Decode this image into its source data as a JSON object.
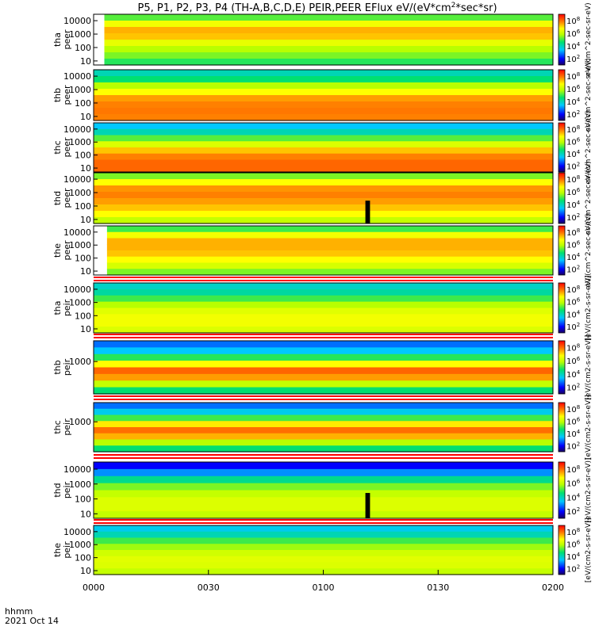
{
  "chart_data": {
    "type": "heatmap",
    "title": {
      "main": "P5, P1, P2, P3, P4 (TH-A,B,C,D,E) PEIR,PEER EFlux eV/(eV*cm",
      "sup": "2",
      "rest": "*sec*sr)"
    },
    "x_axis": {
      "ticks": [
        "0000",
        "0030",
        "0100",
        "0130",
        "0200"
      ],
      "label_line1": "hhmm",
      "label_line2": "2021 Oct 14",
      "range_minutes": [
        0,
        120
      ]
    },
    "colorbar": {
      "colormap": "rainbow",
      "scale": "log",
      "tick_exponents_electron": [
        2,
        4,
        6,
        8
      ],
      "tick_exponents_ion": [
        2,
        4,
        6,
        8
      ],
      "label_electron": "eV/(cm^2-sec-sr-eV)",
      "label_ion": "[eV/(cm2-s-sr-eV)]"
    },
    "panels": [
      {
        "probe": "tha",
        "species": "peer",
        "ylabels": [
          "10000",
          "1000",
          "100",
          "10"
        ],
        "scale": "log",
        "yrange": [
          5,
          30000
        ],
        "data_start_min": 2.8,
        "spectrum": [
          0.52,
          0.7,
          0.8,
          0.78,
          0.68,
          0.6,
          0.55,
          0.48
        ]
      },
      {
        "probe": "thb",
        "species": "peer",
        "ylabels": [
          "10000",
          "1000",
          "100",
          "10"
        ],
        "scale": "log",
        "yrange": [
          5,
          30000
        ],
        "data_start_min": 0,
        "spectrum": [
          0.38,
          0.45,
          0.6,
          0.72,
          0.82,
          0.85,
          0.86,
          0.85
        ]
      },
      {
        "probe": "thc",
        "species": "peer",
        "ylabels": [
          "10000",
          "1000",
          "100",
          "10"
        ],
        "scale": "log",
        "yrange": [
          5,
          30000
        ],
        "data_start_min": 0,
        "spectrum": [
          0.3,
          0.38,
          0.52,
          0.66,
          0.78,
          0.85,
          0.88,
          0.88
        ]
      },
      {
        "probe": "thd",
        "species": "peer",
        "ylabels": [
          "10000",
          "1000",
          "100",
          "10"
        ],
        "scale": "log",
        "yrange": [
          5,
          30000
        ],
        "data_start_min": 0,
        "spectrum": [
          0.55,
          0.72,
          0.83,
          0.85,
          0.82,
          0.78,
          0.72,
          0.62
        ]
      },
      {
        "probe": "the",
        "species": "peer",
        "ylabels": [
          "10000",
          "1000",
          "100",
          "10"
        ],
        "scale": "log",
        "yrange": [
          5,
          30000
        ],
        "data_start_min": 3.5,
        "spectrum": [
          0.5,
          0.7,
          0.8,
          0.8,
          0.78,
          0.72,
          0.65,
          0.55
        ]
      },
      {
        "probe": "tha",
        "species": "peir",
        "ylabels": [
          "10000",
          "1000",
          "100",
          "10"
        ],
        "scale": "log",
        "yrange": [
          5,
          30000
        ],
        "data_start_min": 0,
        "spectrum": [
          0.36,
          0.4,
          0.5,
          0.6,
          0.67,
          0.7,
          0.7,
          0.66
        ]
      },
      {
        "probe": "thb",
        "species": "peir",
        "ylabels": [
          "1000"
        ],
        "scale": "log",
        "yrange": [
          5,
          30000
        ],
        "data_start_min": 0,
        "spectrum": [
          0.22,
          0.3,
          0.48,
          0.72,
          0.88,
          0.82,
          0.62,
          0.45
        ]
      },
      {
        "probe": "thc",
        "species": "peir",
        "ylabels": [
          "1000"
        ],
        "scale": "log",
        "yrange": [
          5,
          30000
        ],
        "data_start_min": 0,
        "spectrum": [
          0.22,
          0.32,
          0.5,
          0.74,
          0.87,
          0.8,
          0.6,
          0.45
        ]
      },
      {
        "probe": "thd",
        "species": "peir",
        "ylabels": [
          "10000",
          "1000",
          "100",
          "10"
        ],
        "scale": "log",
        "yrange": [
          5,
          30000
        ],
        "data_start_min": 0,
        "spectrum": [
          0.12,
          0.25,
          0.42,
          0.55,
          0.62,
          0.66,
          0.66,
          0.62
        ]
      },
      {
        "probe": "the",
        "species": "peir",
        "ylabels": [
          "10000",
          "1000",
          "100",
          "10"
        ],
        "scale": "log",
        "yrange": [
          5,
          30000
        ],
        "data_start_min": 0,
        "spectrum": [
          0.32,
          0.38,
          0.5,
          0.58,
          0.64,
          0.67,
          0.66,
          0.62
        ]
      }
    ],
    "data_gap_min": [
      71,
      72
    ]
  }
}
